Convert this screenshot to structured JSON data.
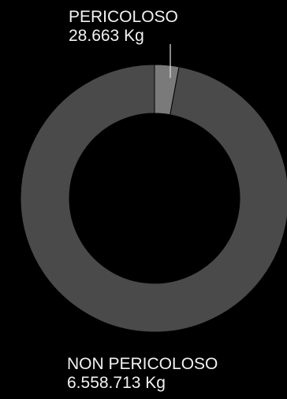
{
  "chart_data": {
    "type": "pie",
    "variant": "donut",
    "slices": [
      {
        "label": "PERICOLOSO",
        "value": 28663,
        "value_label": "28.663 Kg",
        "color": "#7a7a7a"
      },
      {
        "label": "NON PERICOLOSO",
        "value": 6558713,
        "value_label": "6.558.713 Kg",
        "color": "#4a4a4a"
      }
    ],
    "start_angle_deg": 0,
    "direction": "clockwise",
    "background": "#000000"
  }
}
